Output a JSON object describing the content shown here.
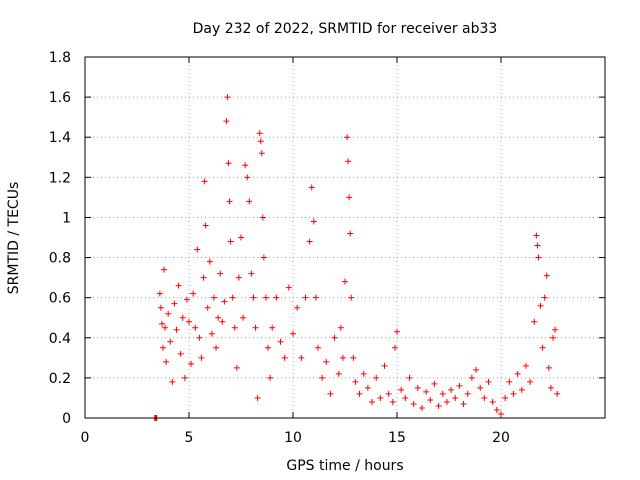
{
  "chart_data": {
    "type": "scatter",
    "title": "Day 232 of 2022, SRMTID for receiver ab33",
    "xlabel": "GPS time / hours",
    "ylabel": "SRMTID / TECUs",
    "xlim": [
      0,
      25
    ],
    "ylim": [
      0,
      1.8
    ],
    "x_ticks": [
      0,
      5,
      10,
      15,
      20
    ],
    "x_tick_labels": [
      "0",
      "5",
      "10",
      "15",
      "20"
    ],
    "y_ticks": [
      0,
      0.2,
      0.4,
      0.6,
      0.8,
      1.0,
      1.2,
      1.4,
      1.6,
      1.8
    ],
    "y_tick_labels": [
      "0",
      "0.2",
      "0.4",
      "0.6",
      "0.8",
      "1",
      "1.2",
      "1.4",
      "1.6",
      "1.8"
    ],
    "grid": true,
    "marker": "+",
    "color": "#ff0000",
    "series": [
      {
        "name": "SRMTID",
        "points": [
          [
            3.35,
            0.0
          ],
          [
            3.38,
            0.0
          ],
          [
            3.42,
            0.0
          ],
          [
            3.45,
            0.0
          ],
          [
            3.6,
            0.62
          ],
          [
            3.65,
            0.55
          ],
          [
            3.7,
            0.47
          ],
          [
            3.75,
            0.35
          ],
          [
            3.8,
            0.74
          ],
          [
            3.85,
            0.45
          ],
          [
            3.9,
            0.28
          ],
          [
            4.0,
            0.52
          ],
          [
            4.1,
            0.38
          ],
          [
            4.2,
            0.18
          ],
          [
            4.3,
            0.57
          ],
          [
            4.4,
            0.44
          ],
          [
            4.5,
            0.66
          ],
          [
            4.6,
            0.32
          ],
          [
            4.7,
            0.5
          ],
          [
            4.8,
            0.2
          ],
          [
            4.9,
            0.59
          ],
          [
            5.0,
            0.48
          ],
          [
            5.1,
            0.27
          ],
          [
            5.2,
            0.62
          ],
          [
            5.3,
            0.45
          ],
          [
            5.4,
            0.84
          ],
          [
            5.5,
            0.4
          ],
          [
            5.6,
            0.3
          ],
          [
            5.7,
            0.7
          ],
          [
            5.75,
            1.18
          ],
          [
            5.8,
            0.96
          ],
          [
            5.9,
            0.55
          ],
          [
            6.0,
            0.78
          ],
          [
            6.1,
            0.42
          ],
          [
            6.2,
            0.6
          ],
          [
            6.3,
            0.35
          ],
          [
            6.4,
            0.5
          ],
          [
            6.5,
            0.72
          ],
          [
            6.6,
            0.48
          ],
          [
            6.7,
            0.58
          ],
          [
            6.8,
            1.48
          ],
          [
            6.85,
            1.6
          ],
          [
            6.9,
            1.27
          ],
          [
            6.95,
            1.08
          ],
          [
            7.0,
            0.88
          ],
          [
            7.1,
            0.6
          ],
          [
            7.2,
            0.45
          ],
          [
            7.3,
            0.25
          ],
          [
            7.4,
            0.7
          ],
          [
            7.5,
            0.9
          ],
          [
            7.6,
            0.5
          ],
          [
            7.7,
            1.26
          ],
          [
            7.8,
            1.2
          ],
          [
            7.9,
            1.08
          ],
          [
            8.0,
            0.72
          ],
          [
            8.1,
            0.6
          ],
          [
            8.2,
            0.45
          ],
          [
            8.3,
            0.1
          ],
          [
            8.4,
            1.42
          ],
          [
            8.45,
            1.38
          ],
          [
            8.5,
            1.32
          ],
          [
            8.55,
            1.0
          ],
          [
            8.6,
            0.8
          ],
          [
            8.7,
            0.6
          ],
          [
            8.8,
            0.35
          ],
          [
            8.9,
            0.2
          ],
          [
            9.0,
            0.45
          ],
          [
            9.2,
            0.6
          ],
          [
            9.4,
            0.38
          ],
          [
            9.6,
            0.3
          ],
          [
            9.8,
            0.65
          ],
          [
            10.0,
            0.42
          ],
          [
            10.2,
            0.55
          ],
          [
            10.4,
            0.3
          ],
          [
            10.6,
            0.6
          ],
          [
            10.8,
            0.88
          ],
          [
            10.9,
            1.15
          ],
          [
            11.0,
            0.98
          ],
          [
            11.1,
            0.6
          ],
          [
            11.2,
            0.35
          ],
          [
            11.4,
            0.2
          ],
          [
            11.6,
            0.28
          ],
          [
            11.8,
            0.12
          ],
          [
            12.0,
            0.4
          ],
          [
            12.2,
            0.22
          ],
          [
            12.3,
            0.45
          ],
          [
            12.4,
            0.3
          ],
          [
            12.5,
            0.68
          ],
          [
            12.6,
            1.4
          ],
          [
            12.65,
            1.28
          ],
          [
            12.7,
            1.1
          ],
          [
            12.75,
            0.92
          ],
          [
            12.8,
            0.6
          ],
          [
            12.9,
            0.3
          ],
          [
            13.0,
            0.18
          ],
          [
            13.2,
            0.12
          ],
          [
            13.4,
            0.22
          ],
          [
            13.6,
            0.15
          ],
          [
            13.8,
            0.08
          ],
          [
            14.0,
            0.2
          ],
          [
            14.2,
            0.1
          ],
          [
            14.4,
            0.26
          ],
          [
            14.6,
            0.12
          ],
          [
            14.8,
            0.08
          ],
          [
            14.9,
            0.35
          ],
          [
            15.0,
            0.43
          ],
          [
            15.2,
            0.14
          ],
          [
            15.4,
            0.1
          ],
          [
            15.6,
            0.2
          ],
          [
            15.8,
            0.07
          ],
          [
            16.0,
            0.15
          ],
          [
            16.2,
            0.05
          ],
          [
            16.4,
            0.13
          ],
          [
            16.6,
            0.09
          ],
          [
            16.8,
            0.17
          ],
          [
            17.0,
            0.06
          ],
          [
            17.2,
            0.12
          ],
          [
            17.4,
            0.08
          ],
          [
            17.6,
            0.14
          ],
          [
            17.8,
            0.1
          ],
          [
            18.0,
            0.16
          ],
          [
            18.2,
            0.07
          ],
          [
            18.4,
            0.12
          ],
          [
            18.6,
            0.2
          ],
          [
            18.8,
            0.24
          ],
          [
            19.0,
            0.15
          ],
          [
            19.2,
            0.1
          ],
          [
            19.4,
            0.18
          ],
          [
            19.6,
            0.08
          ],
          [
            19.8,
            0.04
          ],
          [
            20.0,
            0.02
          ],
          [
            20.2,
            0.1
          ],
          [
            20.4,
            0.18
          ],
          [
            20.6,
            0.12
          ],
          [
            20.8,
            0.22
          ],
          [
            21.0,
            0.14
          ],
          [
            21.2,
            0.26
          ],
          [
            21.4,
            0.18
          ],
          [
            21.6,
            0.48
          ],
          [
            21.7,
            0.91
          ],
          [
            21.75,
            0.86
          ],
          [
            21.8,
            0.8
          ],
          [
            21.9,
            0.56
          ],
          [
            22.0,
            0.35
          ],
          [
            22.1,
            0.6
          ],
          [
            22.2,
            0.71
          ],
          [
            22.3,
            0.25
          ],
          [
            22.4,
            0.15
          ],
          [
            22.5,
            0.4
          ],
          [
            22.6,
            0.44
          ],
          [
            22.7,
            0.12
          ]
        ]
      }
    ]
  }
}
